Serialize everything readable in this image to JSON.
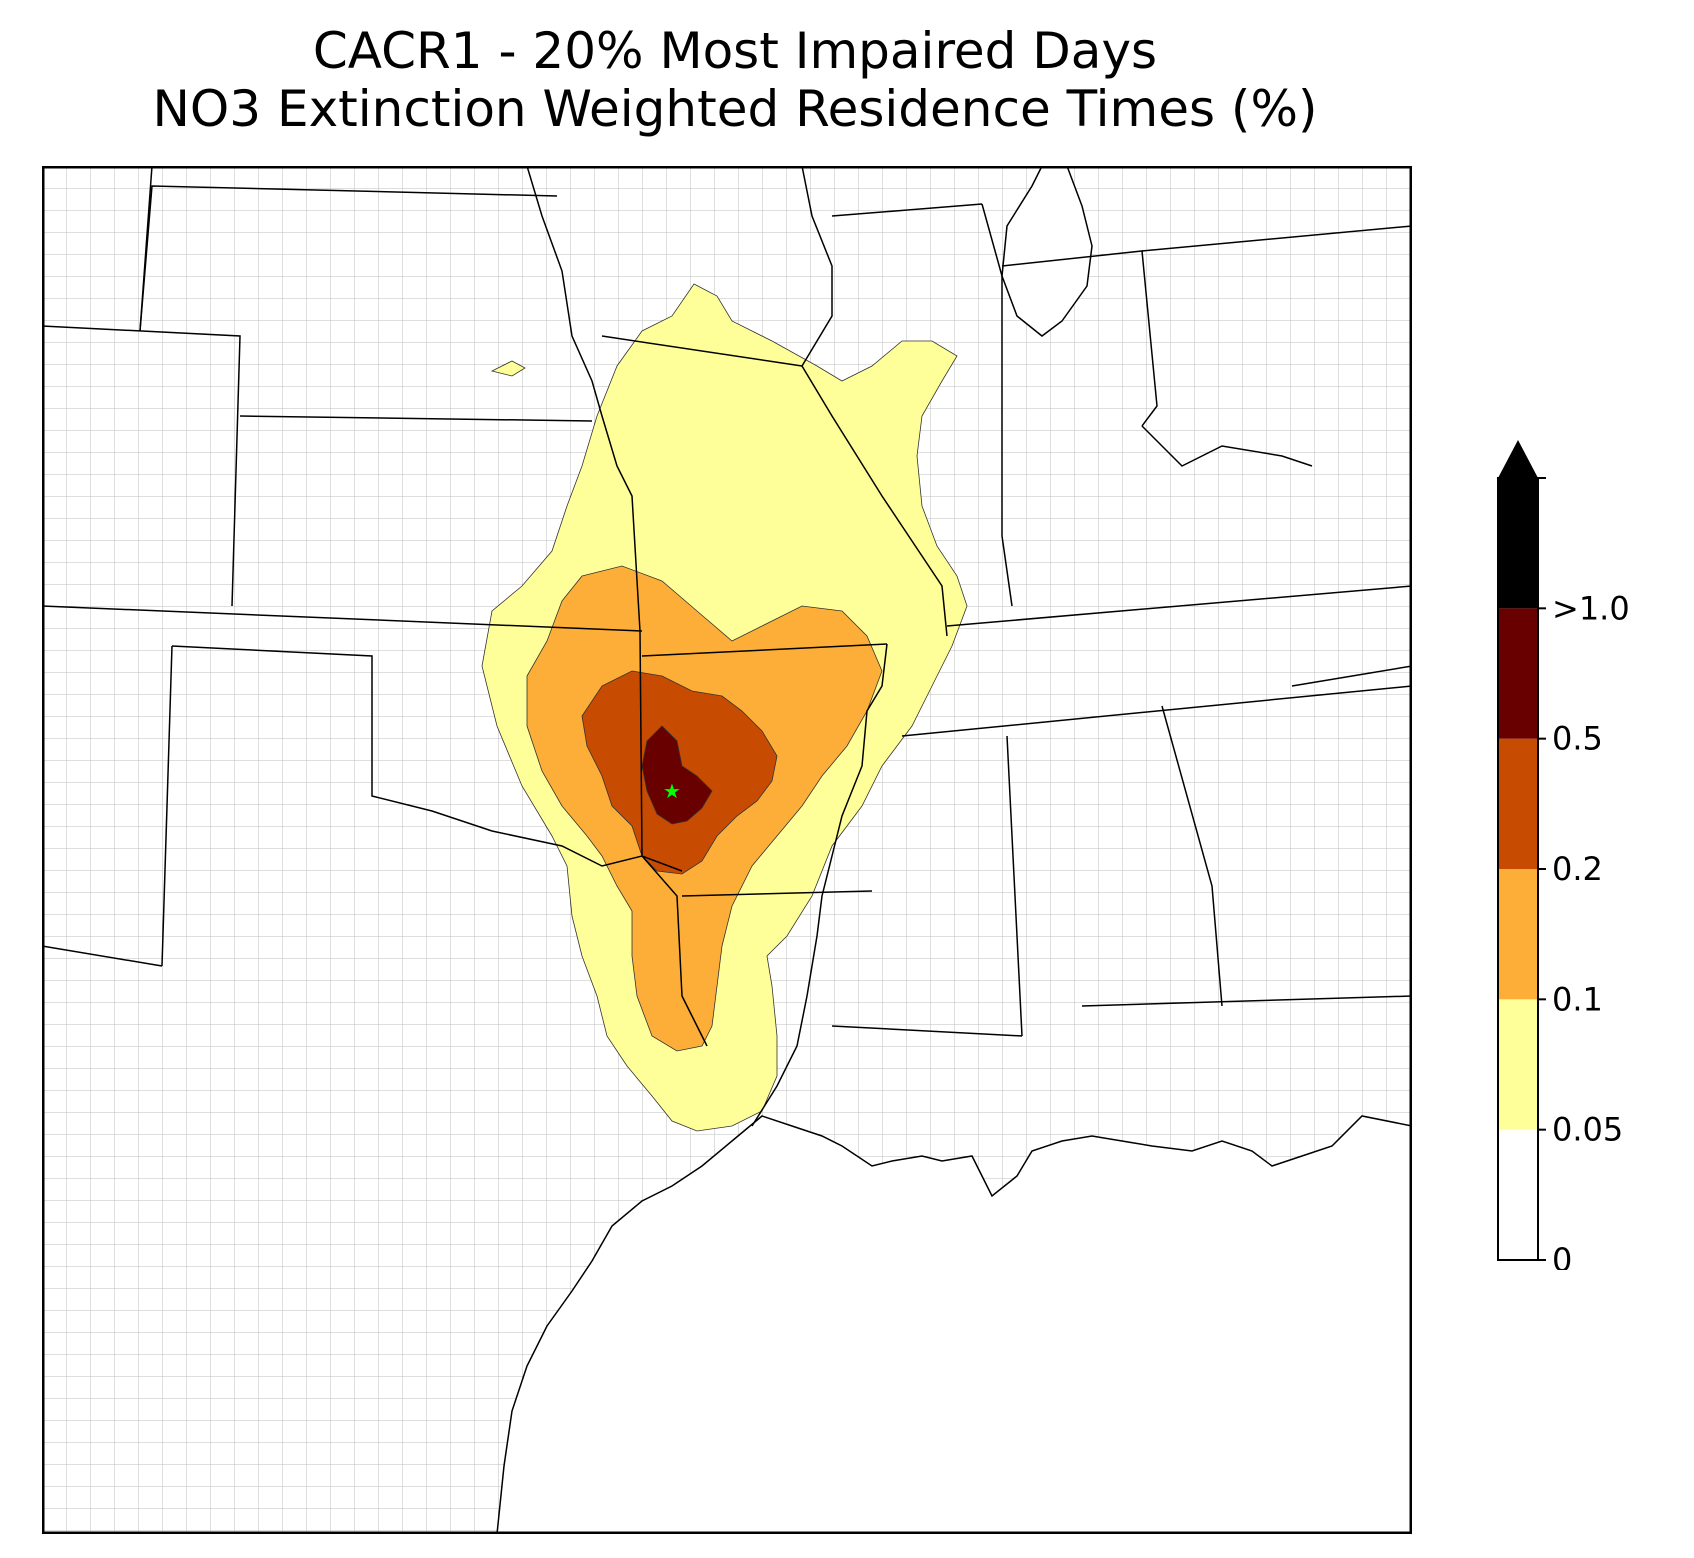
{
  "title": {
    "line1": "CACR1 - 20% Most Impaired Days",
    "line2": "NO3 Extinction Weighted Residence Times (%)"
  },
  "map": {
    "region": "Central and southern United States",
    "site_marker": {
      "color": "#00ff00",
      "icon": "star-icon"
    },
    "state_line_color": "#000000",
    "county_line_color": "#a0a0a0"
  },
  "colorbar": {
    "ticks": [
      "0",
      "0.05",
      "0.1",
      "0.2",
      "0.5",
      ">1.0"
    ],
    "levels": [
      {
        "range": "0-0.05",
        "color": "#ffffff"
      },
      {
        "range": "0.05-0.1",
        "color": "#ffff99"
      },
      {
        "range": "0.1-0.2",
        "color": "#fdae38"
      },
      {
        "range": "0.2-0.5",
        "color": "#c84b02"
      },
      {
        "range": "0.5-1.0",
        "color": "#680000"
      },
      {
        "range": ">1.0",
        "color": "#000000"
      }
    ],
    "extend": "max"
  }
}
